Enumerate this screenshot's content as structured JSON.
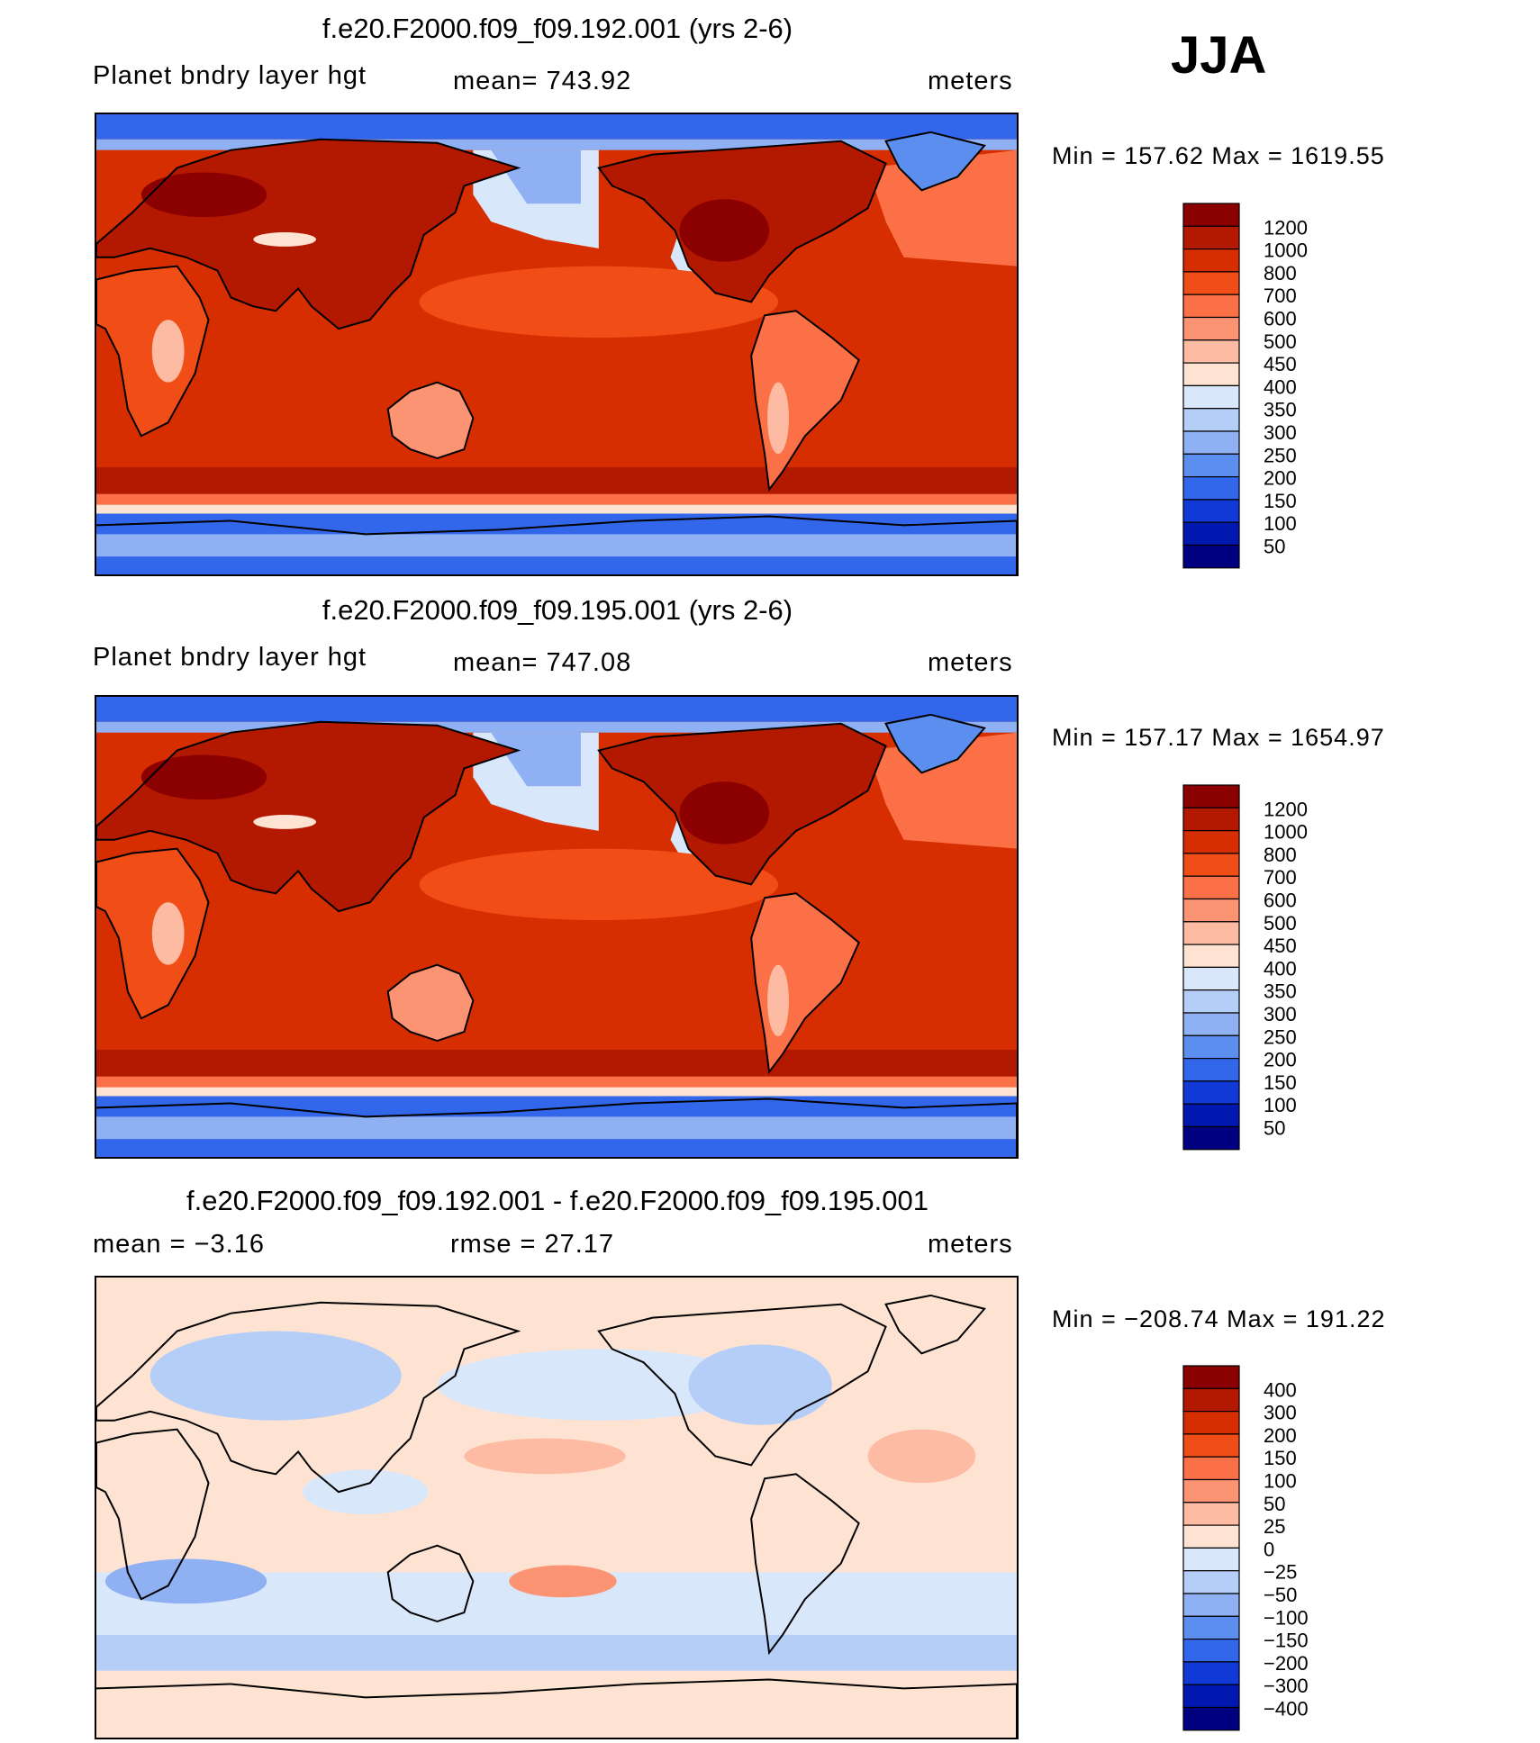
{
  "season": "JJA",
  "panels": [
    {
      "id": "case1",
      "title": "f.e20.F2000.f09_f09.192.001 (yrs 2-6)",
      "left_label": "Planet bndry layer hgt",
      "center_label": "mean= 743.92",
      "right_label": "meters",
      "minmax": "Min = 157.62 Max = 1619.55"
    },
    {
      "id": "case2",
      "title": "f.e20.F2000.f09_f09.195.001 (yrs 2-6)",
      "left_label": "Planet bndry layer hgt",
      "center_label": "mean= 747.08",
      "right_label": "meters",
      "minmax": "Min = 157.17 Max = 1654.97"
    },
    {
      "id": "diff",
      "title": "f.e20.F2000.f09_f09.192.001 - f.e20.F2000.f09_f09.195.001",
      "left_label": "mean =   −3.16",
      "center_label": "rmse =   27.17",
      "right_label": "meters",
      "minmax": "Min = −208.74 Max = 191.22"
    }
  ],
  "chart_data": [
    {
      "type": "heatmap",
      "title": "f.e20.F2000.f09_f09.192.001 (yrs 2-6)",
      "variable": "Planet bndry layer hgt",
      "units": "meters",
      "mean": 743.92,
      "min": 157.62,
      "max": 1619.55,
      "colorbar": {
        "labels": [
          "1200",
          "1000",
          "800",
          "700",
          "600",
          "500",
          "450",
          "400",
          "350",
          "300",
          "250",
          "200",
          "150",
          "100",
          "50"
        ],
        "colors": [
          "#8b0000",
          "#b31800",
          "#d62e00",
          "#f04d17",
          "#fb7046",
          "#fc9474",
          "#fdbba3",
          "#fee3d3",
          "#d8e7fa",
          "#b4cef7",
          "#8fb0f2",
          "#5b8eee",
          "#3266eb",
          "#1039d8",
          "#0017b0",
          "#000080"
        ]
      }
    },
    {
      "type": "heatmap",
      "title": "f.e20.F2000.f09_f09.195.001 (yrs 2-6)",
      "variable": "Planet bndry layer hgt",
      "units": "meters",
      "mean": 747.08,
      "min": 157.17,
      "max": 1654.97,
      "colorbar": {
        "labels": [
          "1200",
          "1000",
          "800",
          "700",
          "600",
          "500",
          "450",
          "400",
          "350",
          "300",
          "250",
          "200",
          "150",
          "100",
          "50"
        ],
        "colors": [
          "#8b0000",
          "#b31800",
          "#d62e00",
          "#f04d17",
          "#fb7046",
          "#fc9474",
          "#fdbba3",
          "#fee3d3",
          "#d8e7fa",
          "#b4cef7",
          "#8fb0f2",
          "#5b8eee",
          "#3266eb",
          "#1039d8",
          "#0017b0",
          "#000080"
        ]
      }
    },
    {
      "type": "heatmap",
      "title": "f.e20.F2000.f09_f09.192.001 - f.e20.F2000.f09_f09.195.001",
      "units": "meters",
      "mean": -3.16,
      "rmse": 27.17,
      "min": -208.74,
      "max": 191.22,
      "colorbar": {
        "labels": [
          "400",
          "300",
          "200",
          "150",
          "100",
          "50",
          "25",
          "0",
          "−25",
          "−50",
          "−100",
          "−150",
          "−200",
          "−300",
          "−400"
        ],
        "colors": [
          "#8b0000",
          "#b31800",
          "#d62e00",
          "#f04d17",
          "#fb7046",
          "#fc9474",
          "#fdbba3",
          "#fee3d3",
          "#d8e7fa",
          "#b4cef7",
          "#8fb0f2",
          "#5b8eee",
          "#3266eb",
          "#1039d8",
          "#0017b0",
          "#000080"
        ]
      }
    }
  ]
}
